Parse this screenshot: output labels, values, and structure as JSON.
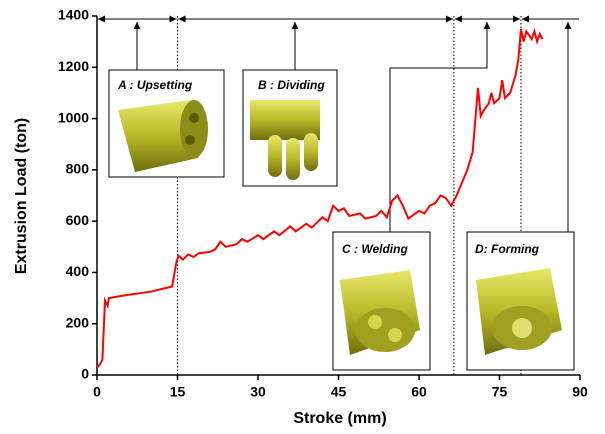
{
  "chart_data": {
    "type": "line",
    "x_label": "Stroke (mm)",
    "y_label": "Extrusion Load (ton)",
    "xlim": [
      0,
      90
    ],
    "xticks": [
      0,
      15,
      30,
      45,
      60,
      75,
      90
    ],
    "ylim": [
      0,
      1400
    ],
    "yticks": [
      0,
      200,
      400,
      600,
      800,
      1000,
      1200,
      1400
    ],
    "stage_boundaries": [
      15,
      66.5,
      79
    ],
    "stages": [
      "A : Upsetting",
      "B : Dividing",
      "C : Welding",
      "D: Forming"
    ],
    "series": [
      {
        "color": "#ff0000",
        "x": [
          0,
          0.5,
          1,
          1.5,
          2,
          2.2,
          5,
          10,
          14,
          14.8,
          15.2,
          16,
          17,
          18,
          19,
          21,
          22,
          23,
          24,
          26,
          27,
          28,
          30,
          31,
          33,
          34,
          36,
          37,
          39,
          40,
          42,
          43,
          44,
          45,
          46,
          47,
          49,
          50,
          52,
          53,
          54,
          55,
          56,
          57,
          58,
          60,
          61,
          62,
          63,
          64,
          65,
          66,
          67,
          68,
          69,
          70,
          70.5,
          71,
          71.5,
          72,
          73,
          73.5,
          74,
          75,
          75.5,
          76,
          77,
          78,
          78.5,
          79,
          79.5,
          80,
          81,
          81.5,
          82,
          82.5,
          83
        ],
        "values": [
          30,
          40,
          60,
          290,
          270,
          300,
          310,
          325,
          345,
          440,
          465,
          450,
          470,
          460,
          475,
          480,
          490,
          520,
          500,
          510,
          530,
          520,
          545,
          530,
          560,
          545,
          580,
          560,
          590,
          575,
          615,
          600,
          660,
          640,
          650,
          620,
          630,
          610,
          620,
          640,
          615,
          680,
          700,
          660,
          610,
          640,
          630,
          660,
          670,
          700,
          690,
          660,
          700,
          750,
          800,
          870,
          1000,
          1120,
          1010,
          1030,
          1060,
          1100,
          1060,
          1080,
          1150,
          1080,
          1100,
          1170,
          1230,
          1350,
          1300,
          1340,
          1310,
          1340,
          1300,
          1330,
          1310
        ]
      }
    ]
  }
}
